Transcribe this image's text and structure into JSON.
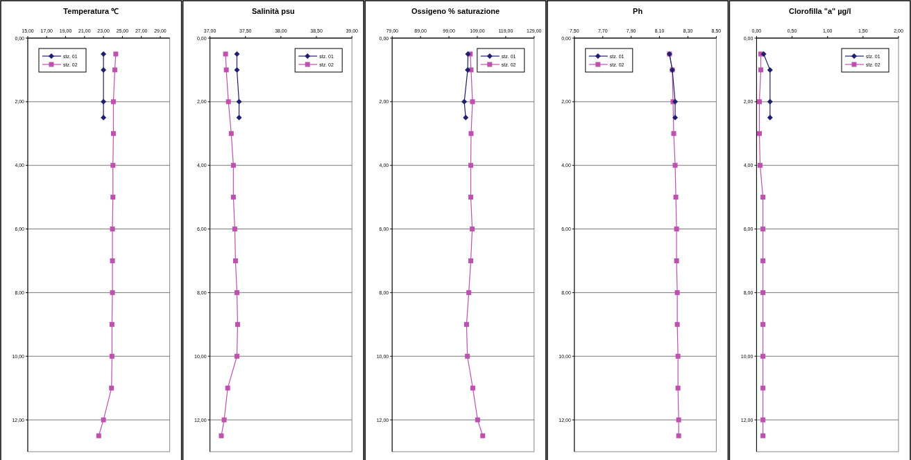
{
  "chart_data": [
    {
      "type": "line",
      "title": "Temperatura ℃",
      "xlim": [
        15,
        30
      ],
      "xticks": [
        {
          "value": 15,
          "label": "15,00"
        },
        {
          "value": 17,
          "label": "17,00"
        },
        {
          "value": 19,
          "label": "19,00"
        },
        {
          "value": 21,
          "label": "21,00"
        },
        {
          "value": 23,
          "label": "23,00"
        },
        {
          "value": 25,
          "label": "25,00"
        },
        {
          "value": 27,
          "label": "27,00"
        },
        {
          "value": 29,
          "label": "29,00"
        }
      ],
      "ylim": [
        13,
        0
      ],
      "yticks": [
        {
          "value": 0,
          "label": "0,00"
        },
        {
          "value": 2,
          "label": "2,00"
        },
        {
          "value": 4,
          "label": "4,00"
        },
        {
          "value": 6,
          "label": "6,00"
        },
        {
          "value": 8,
          "label": "8,00"
        },
        {
          "value": 10,
          "label": "10,00"
        },
        {
          "value": 12,
          "label": "12,00"
        }
      ],
      "grid": "y",
      "legend": "top left",
      "series": [
        {
          "name": "stz. 01",
          "color": "#1f1f6e",
          "marker": "diamond",
          "x": [
            23.0,
            23.0,
            23.0,
            23.0
          ],
          "values": [
            0.5,
            1,
            2,
            2.5
          ]
        },
        {
          "name": "stz. 02",
          "color": "#c050b0",
          "marker": "square",
          "x": [
            24.3,
            24.2,
            24.05,
            24.05,
            24.0,
            24.0,
            23.95,
            23.95,
            23.95,
            23.9,
            23.9,
            23.85,
            23.0,
            22.5
          ],
          "values": [
            0.5,
            1,
            2,
            3,
            4,
            5,
            6,
            7,
            8,
            9,
            10,
            11,
            12,
            12.5
          ]
        }
      ]
    },
    {
      "type": "line",
      "title": "Salinità psu",
      "xlim": [
        37,
        39
      ],
      "xticks": [
        {
          "value": 37,
          "label": "37,00"
        },
        {
          "value": 37.5,
          "label": "37,50"
        },
        {
          "value": 38,
          "label": "38,00"
        },
        {
          "value": 38.5,
          "label": "38,50"
        },
        {
          "value": 39,
          "label": "39,00"
        }
      ],
      "ylim": [
        13,
        0
      ],
      "yticks": [
        {
          "value": 0,
          "label": "0,00"
        },
        {
          "value": 2,
          "label": "2,00"
        },
        {
          "value": 4,
          "label": "4,00"
        },
        {
          "value": 6,
          "label": "6,00"
        },
        {
          "value": 8,
          "label": "8,00"
        },
        {
          "value": 10,
          "label": "10,00"
        },
        {
          "value": 12,
          "label": "12,00"
        }
      ],
      "grid": "y",
      "legend": "top right",
      "series": [
        {
          "name": "stz. 01",
          "color": "#1f1f6e",
          "marker": "diamond",
          "x": [
            37.38,
            37.38,
            37.41,
            37.41
          ],
          "values": [
            0.5,
            1,
            2,
            2.5
          ]
        },
        {
          "name": "stz. 02",
          "color": "#c050b0",
          "marker": "square",
          "x": [
            37.22,
            37.23,
            37.26,
            37.3,
            37.33,
            37.33,
            37.35,
            37.36,
            37.38,
            37.39,
            37.38,
            37.25,
            37.2,
            37.16
          ],
          "values": [
            0.5,
            1,
            2,
            3,
            4,
            5,
            6,
            7,
            8,
            9,
            10,
            11,
            12,
            12.5
          ]
        }
      ]
    },
    {
      "type": "line",
      "title": "Ossigeno % saturazione",
      "xlim": [
        79,
        129
      ],
      "xticks": [
        {
          "value": 79,
          "label": "79,00"
        },
        {
          "value": 89,
          "label": "89,00"
        },
        {
          "value": 99,
          "label": "99,00"
        },
        {
          "value": 109,
          "label": "109,00"
        },
        {
          "value": 119,
          "label": "119,00"
        },
        {
          "value": 129,
          "label": "129,00"
        }
      ],
      "ylim": [
        13,
        0
      ],
      "yticks": [
        {
          "value": 0,
          "label": "0,00"
        },
        {
          "value": 2,
          "label": "2,00"
        },
        {
          "value": 4,
          "label": "4,00"
        },
        {
          "value": 6,
          "label": "6,00"
        },
        {
          "value": 8,
          "label": "8,00"
        },
        {
          "value": 10,
          "label": "10,00"
        },
        {
          "value": 12,
          "label": "12,00"
        }
      ],
      "grid": "y",
      "legend": "top right",
      "series": [
        {
          "name": "stz. 01",
          "color": "#1f1f6e",
          "marker": "diamond",
          "x": [
            105.7,
            105.6,
            104.4,
            104.9
          ],
          "values": [
            0.5,
            1,
            2,
            2.5
          ]
        },
        {
          "name": "stz. 02",
          "color": "#c050b0",
          "marker": "square",
          "x": [
            106.5,
            106.8,
            107.3,
            106.8,
            106.7,
            106.7,
            107.2,
            106.7,
            106.0,
            105.2,
            105.5,
            107.4,
            109.1,
            110.9
          ],
          "values": [
            0.5,
            1,
            2,
            3,
            4,
            5,
            6,
            7,
            8,
            9,
            10,
            11,
            12,
            12.5
          ]
        }
      ]
    },
    {
      "type": "line",
      "title": "Ph",
      "xlim": [
        7.5,
        8.5
      ],
      "xticks": [
        {
          "value": 7.5,
          "label": "7,50"
        },
        {
          "value": 7.7,
          "label": "7,70"
        },
        {
          "value": 7.9,
          "label": "7,90"
        },
        {
          "value": 8.1,
          "label": "8,10"
        },
        {
          "value": 8.3,
          "label": "8,30"
        },
        {
          "value": 8.5,
          "label": "8,50"
        }
      ],
      "ylim": [
        13,
        0
      ],
      "yticks": [
        {
          "value": 0,
          "label": "0,00"
        },
        {
          "value": 2,
          "label": "2,00"
        },
        {
          "value": 4,
          "label": "4,00"
        },
        {
          "value": 6,
          "label": "6,00"
        },
        {
          "value": 8,
          "label": "8,00"
        },
        {
          "value": 10,
          "label": "10,00"
        },
        {
          "value": 12,
          "label": "12,00"
        }
      ],
      "grid": "y",
      "legend": "top left",
      "series": [
        {
          "name": "stz. 01",
          "color": "#1f1f6e",
          "marker": "diamond",
          "x": [
            8.17,
            8.19,
            8.21,
            8.21
          ],
          "values": [
            0.5,
            1,
            2,
            2.5
          ]
        },
        {
          "name": "stz. 02",
          "color": "#c050b0",
          "marker": "square",
          "x": [
            8.17,
            8.19,
            8.195,
            8.2,
            8.21,
            8.215,
            8.22,
            8.22,
            8.225,
            8.225,
            8.23,
            8.23,
            8.235,
            8.235
          ],
          "values": [
            0.5,
            1,
            2,
            3,
            4,
            5,
            6,
            7,
            8,
            9,
            10,
            11,
            12,
            12.5
          ]
        }
      ]
    },
    {
      "type": "line",
      "title": "Clorofilla \"a\"  µg/l",
      "xlim": [
        0,
        2
      ],
      "xticks": [
        {
          "value": 0,
          "label": "0,00"
        },
        {
          "value": 0.5,
          "label": "0,50"
        },
        {
          "value": 1,
          "label": "1,00"
        },
        {
          "value": 1.5,
          "label": "1,50"
        },
        {
          "value": 2,
          "label": "2,00"
        }
      ],
      "ylim": [
        13,
        0
      ],
      "yticks": [
        {
          "value": 0,
          "label": "0,00"
        },
        {
          "value": 2,
          "label": "2,00"
        },
        {
          "value": 4,
          "label": "4,00"
        },
        {
          "value": 6,
          "label": "6,00"
        },
        {
          "value": 8,
          "label": "8,00"
        },
        {
          "value": 10,
          "label": "10,00"
        },
        {
          "value": 12,
          "label": "12,00"
        }
      ],
      "grid": "y",
      "legend": "top right",
      "series": [
        {
          "name": "stz. 01",
          "color": "#1f1f6e",
          "marker": "diamond",
          "x": [
            0.1,
            0.19,
            0.19,
            0.19
          ],
          "values": [
            0.5,
            1,
            2,
            2.5
          ]
        },
        {
          "name": "stz. 02",
          "color": "#c050b0",
          "marker": "square",
          "x": [
            0.06,
            0.06,
            0.04,
            0.04,
            0.05,
            0.09,
            0.09,
            0.09,
            0.09,
            0.09,
            0.09,
            0.09,
            0.09,
            0.09
          ],
          "values": [
            0.5,
            1,
            2,
            3,
            4,
            5,
            6,
            7,
            8,
            9,
            10,
            11,
            12,
            12.5
          ]
        }
      ]
    }
  ]
}
